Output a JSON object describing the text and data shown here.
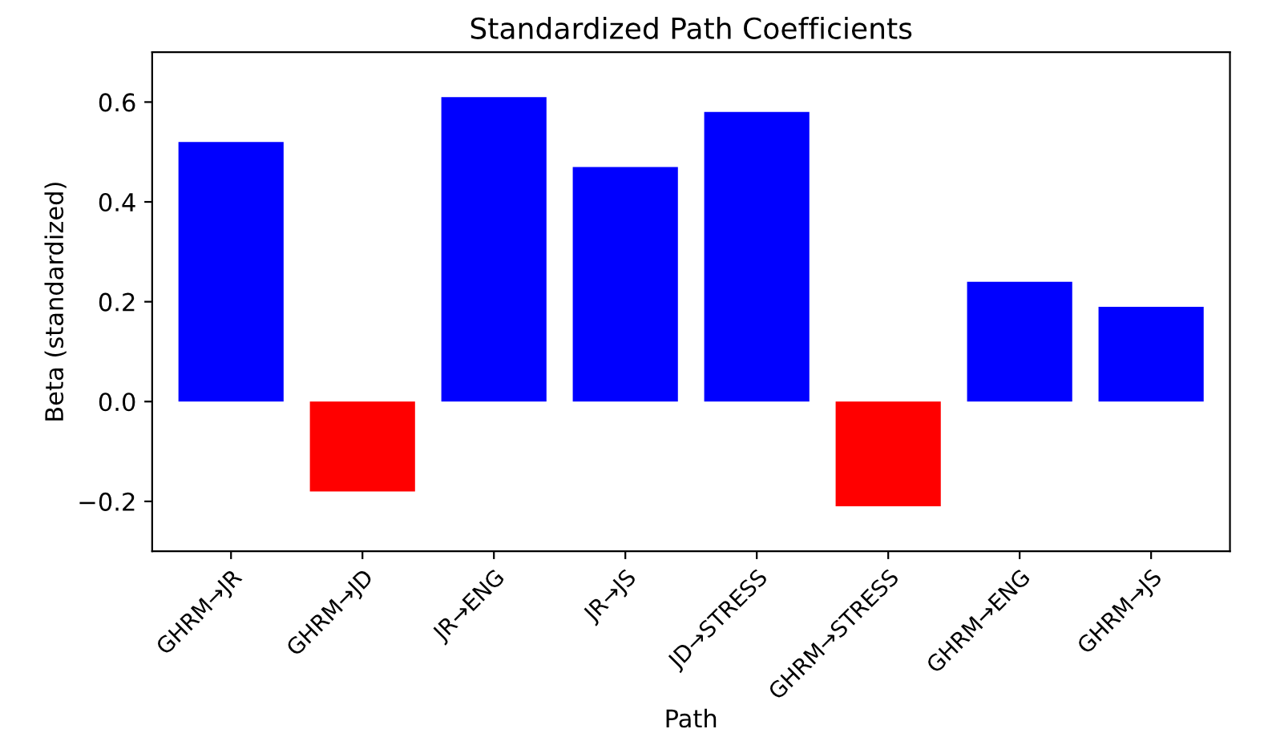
{
  "chart_data": {
    "type": "bar",
    "title": "Standardized Path Coefficients",
    "xlabel": "Path",
    "ylabel": "Beta (standardized)",
    "categories": [
      "GHRM→JR",
      "GHRM→JD",
      "JR→ENG",
      "JR→JS",
      "JD→STRESS",
      "GHRM→STRESS",
      "GHRM→ENG",
      "GHRM→JS"
    ],
    "values": [
      0.52,
      -0.18,
      0.61,
      0.47,
      0.58,
      -0.21,
      0.24,
      0.19
    ],
    "colors": [
      "#0000ff",
      "#ff0000",
      "#0000ff",
      "#0000ff",
      "#0000ff",
      "#ff0000",
      "#0000ff",
      "#0000ff"
    ],
    "ylim": [
      -0.3,
      0.7
    ],
    "yticks": [
      {
        "value": -0.2,
        "label": "−0.2"
      },
      {
        "value": 0.0,
        "label": "0.0"
      },
      {
        "value": 0.2,
        "label": "0.2"
      },
      {
        "value": 0.4,
        "label": "0.4"
      },
      {
        "value": 0.6,
        "label": "0.6"
      }
    ],
    "grid": false,
    "legend": false
  }
}
